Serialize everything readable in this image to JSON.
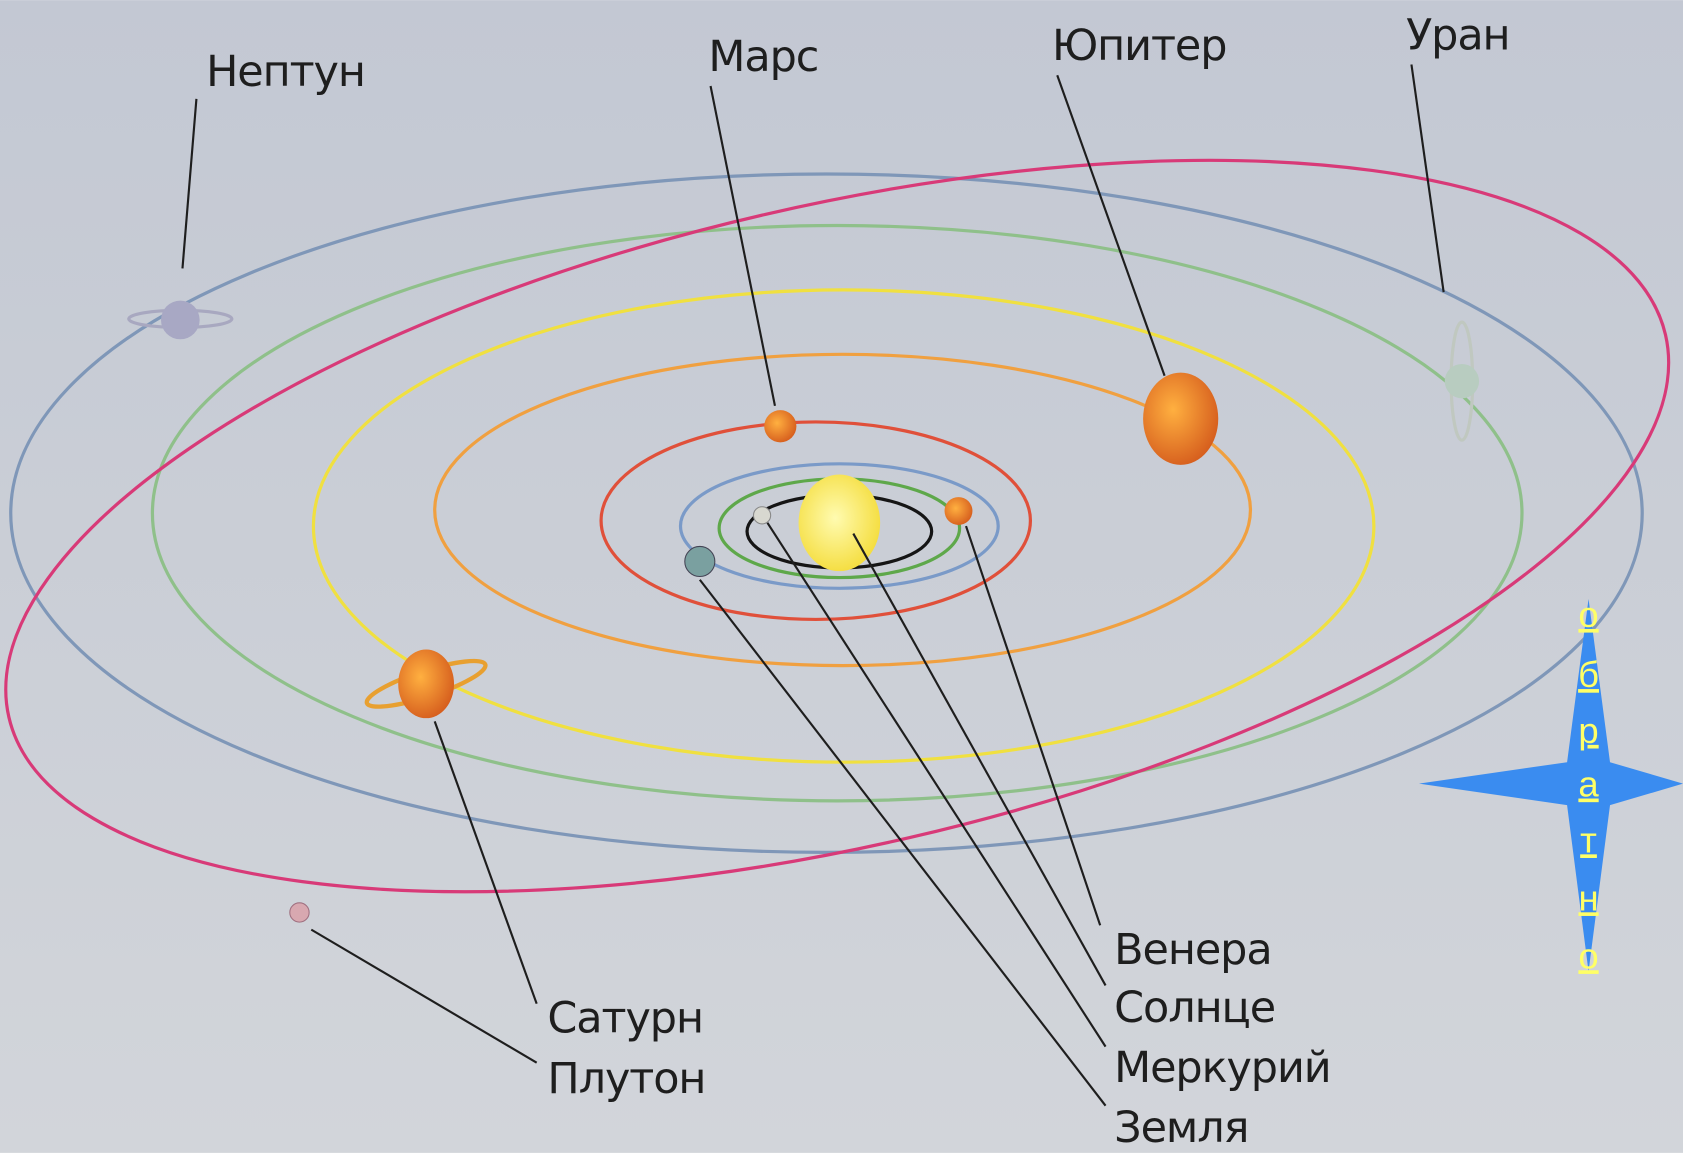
{
  "labels": {
    "neptune": "Нептун",
    "mars": "Марс",
    "jupiter": "Юпитер",
    "uranus": "Уран",
    "venus": "Венера",
    "sun": "Солнце",
    "mercury": "Меркурий",
    "earth": "Земля",
    "saturn": "Сатурн",
    "pluto": "Плутон"
  },
  "back_button": {
    "letters": [
      "о",
      "б",
      "р",
      "а",
      "т",
      "н",
      "о"
    ]
  }
}
